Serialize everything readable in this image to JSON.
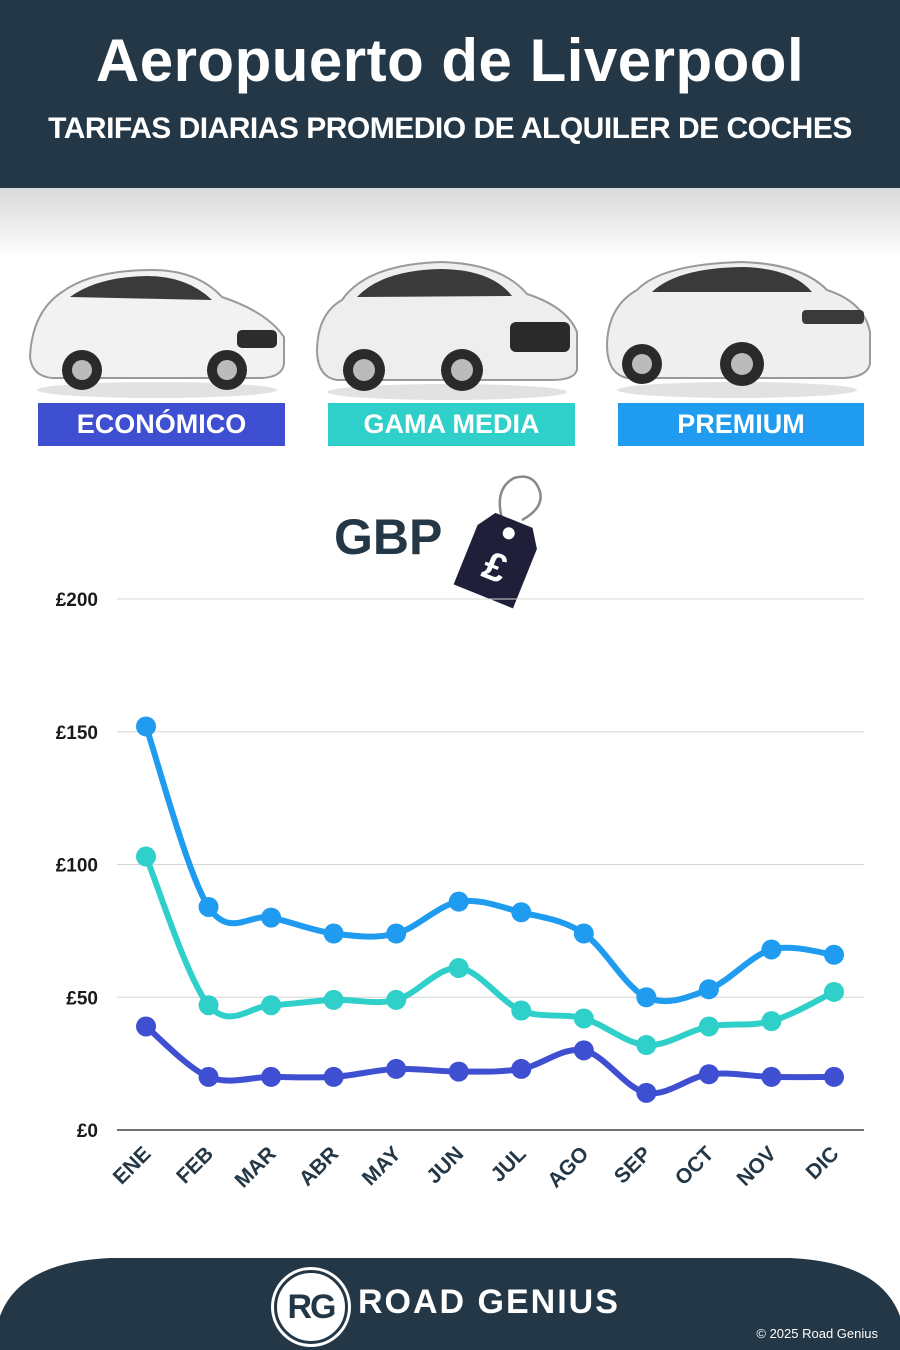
{
  "header": {
    "title": "Aeropuerto de Liverpool",
    "subtitle": "TARIFAS DIARIAS PROMEDIO DE ALQUILER DE COCHES"
  },
  "categories": [
    {
      "label": "ECONÓMICO",
      "color": "#3f4fd1"
    },
    {
      "label": "GAMA MEDIA",
      "color": "#2fcfca"
    },
    {
      "label": "PREMIUM",
      "color": "#1f9bef"
    }
  ],
  "currency": {
    "label": "GBP",
    "symbol": "£"
  },
  "chart_data": {
    "type": "line",
    "categories": [
      "ENE",
      "FEB",
      "MAR",
      "ABR",
      "MAY",
      "JUN",
      "JUL",
      "AGO",
      "SEP",
      "OCT",
      "NOV",
      "DIC"
    ],
    "series": [
      {
        "name": "PREMIUM",
        "color": "#1f9bef",
        "values": [
          152,
          84,
          80,
          74,
          74,
          86,
          82,
          74,
          50,
          53,
          68,
          66
        ]
      },
      {
        "name": "GAMA MEDIA",
        "color": "#2fcfca",
        "values": [
          103,
          47,
          47,
          49,
          49,
          61,
          45,
          42,
          32,
          39,
          41,
          52
        ]
      },
      {
        "name": "ECONÓMICO",
        "color": "#3f4fd1",
        "values": [
          39,
          20,
          20,
          20,
          23,
          22,
          23,
          30,
          14,
          21,
          20,
          20
        ]
      }
    ],
    "yticks": [
      0,
      50,
      100,
      150,
      200
    ],
    "ytick_labels": [
      "£0",
      "£50",
      "£100",
      "£150",
      "£200"
    ],
    "ylim": [
      0,
      200
    ],
    "grid": true
  },
  "footer": {
    "logo_text": "RG",
    "brand": "ROAD GENIUS",
    "copyright": "© 2025 Road Genius"
  },
  "colors": {
    "dark_navy": "#233746"
  }
}
